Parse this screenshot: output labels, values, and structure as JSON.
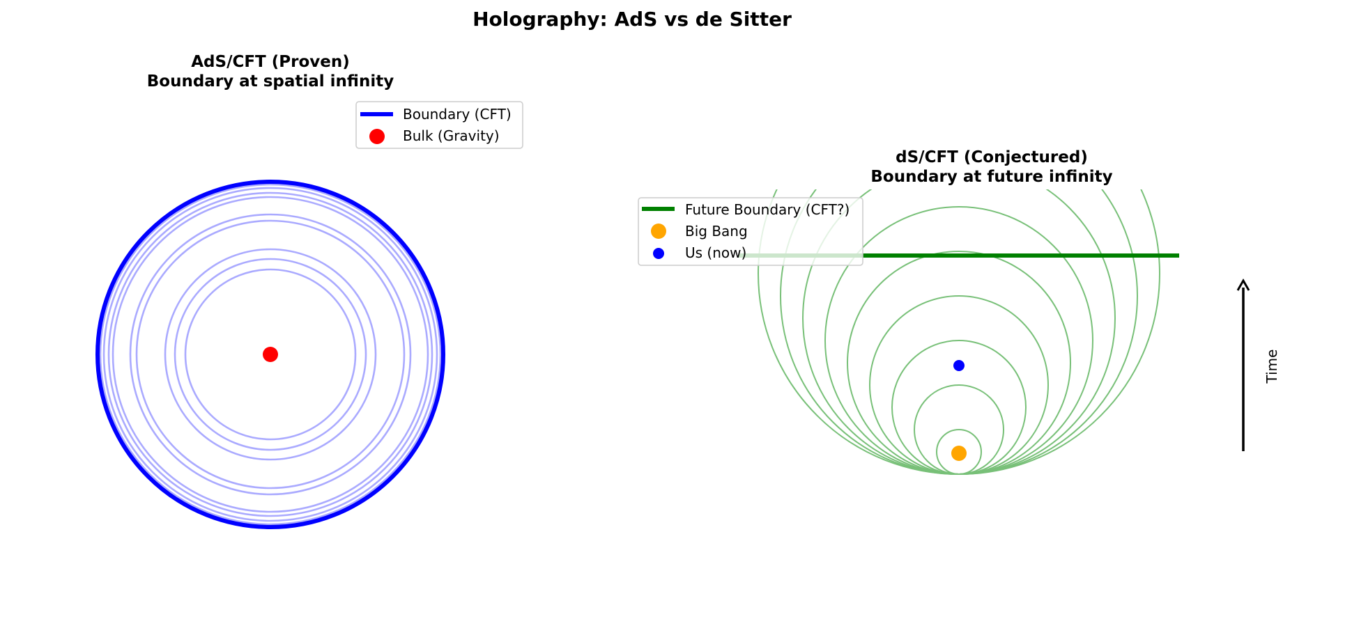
{
  "figure": {
    "suptitle": "Holography: AdS vs de Sitter"
  },
  "left_panel": {
    "title_line1": "AdS/CFT (Proven)",
    "title_line2": "Boundary at spatial infinity",
    "legend": [
      {
        "label": "Boundary (CFT)",
        "color": "#0000ff",
        "marker": "line"
      },
      {
        "label": "Bulk (Gravity)",
        "color": "#ff0000",
        "marker": "dot"
      }
    ],
    "colors": {
      "boundary": "#0000ff",
      "bulk_rings": "#aaaaff",
      "bulk_point": "#ff0000"
    }
  },
  "right_panel": {
    "title_line1": "dS/CFT (Conjectured)",
    "title_line2": "Boundary at future infinity",
    "legend": [
      {
        "label": "Future Boundary (CFT?)",
        "color": "#008000",
        "marker": "line"
      },
      {
        "label": "Big Bang",
        "color": "#ffa500",
        "marker": "dot"
      },
      {
        "label": "Us (now)",
        "color": "#0000ff",
        "marker": "dot"
      }
    ],
    "time_label": "Time",
    "colors": {
      "future_boundary": "#008000",
      "light_cones": "#78c078",
      "big_bang": "#ffa500",
      "us": "#0000ff",
      "arrow": "#000000"
    }
  }
}
